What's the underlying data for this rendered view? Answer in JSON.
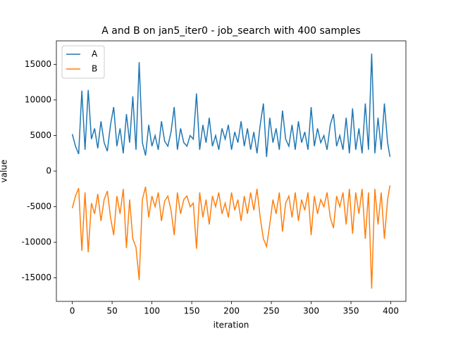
{
  "chart_data": {
    "type": "line",
    "title": "A and B on jan5_iter0 - job_search with 400 samples",
    "xlabel": "iteration",
    "ylabel": "value",
    "x": [
      0,
      4,
      8,
      12,
      16,
      20,
      24,
      28,
      32,
      36,
      40,
      44,
      48,
      52,
      56,
      60,
      64,
      68,
      72,
      76,
      80,
      84,
      88,
      92,
      96,
      100,
      104,
      108,
      112,
      116,
      120,
      124,
      128,
      132,
      136,
      140,
      144,
      148,
      152,
      156,
      160,
      164,
      168,
      172,
      176,
      180,
      184,
      188,
      192,
      196,
      200,
      204,
      208,
      212,
      216,
      220,
      224,
      228,
      232,
      236,
      240,
      244,
      248,
      252,
      256,
      260,
      264,
      268,
      272,
      276,
      280,
      284,
      288,
      292,
      296,
      300,
      304,
      308,
      312,
      316,
      320,
      324,
      328,
      332,
      336,
      340,
      344,
      348,
      352,
      356,
      360,
      364,
      368,
      372,
      376,
      380,
      384,
      388,
      392,
      396,
      399
    ],
    "series": [
      {
        "name": "A",
        "color": "#1f77b4",
        "values": [
          5200,
          3500,
          2400,
          11300,
          3000,
          11400,
          4500,
          6000,
          3200,
          7000,
          4000,
          2800,
          6500,
          9000,
          3500,
          6000,
          2500,
          8000,
          4000,
          10500,
          3000,
          15300,
          4000,
          2200,
          6500,
          3500,
          5000,
          3000,
          7000,
          4200,
          3500,
          5500,
          9000,
          3000,
          6000,
          4000,
          3500,
          5000,
          4500,
          10900,
          3000,
          6500,
          4000,
          7500,
          3500,
          5000,
          3000,
          6000,
          4500,
          6500,
          3000,
          5500,
          4000,
          7000,
          3500,
          6000,
          3000,
          5500,
          2500,
          6500,
          9500,
          2000,
          7500,
          4000,
          6000,
          3000,
          8500,
          4500,
          3500,
          6500,
          3000,
          7000,
          4000,
          5500,
          3000,
          9000,
          3500,
          6000,
          4000,
          5000,
          3000,
          6500,
          8000,
          3500,
          5000,
          3000,
          7500,
          2500,
          8800,
          3000,
          6000,
          2500,
          9500,
          3000,
          16500,
          2500,
          7500,
          3000,
          9500,
          4000,
          2000
        ]
      },
      {
        "name": "B",
        "color": "#ff7f0e",
        "values": [
          -5200,
          -3500,
          -2400,
          -11200,
          -3000,
          -11400,
          -4500,
          -6000,
          -3200,
          -7000,
          -4000,
          -2800,
          -6500,
          -9000,
          -3500,
          -6000,
          -2500,
          -10800,
          -4000,
          -9500,
          -10700,
          -15300,
          -4000,
          -2200,
          -6500,
          -3500,
          -5000,
          -3000,
          -7000,
          -4200,
          -3500,
          -5500,
          -9000,
          -3000,
          -6000,
          -4000,
          -3500,
          -5000,
          -4500,
          -10900,
          -3000,
          -6500,
          -4000,
          -7500,
          -3500,
          -5000,
          -3000,
          -6000,
          -4500,
          -6500,
          -3000,
          -5500,
          -4000,
          -7000,
          -3500,
          -6000,
          -3000,
          -5500,
          -2500,
          -6500,
          -9500,
          -10600,
          -7500,
          -4000,
          -6000,
          -3000,
          -8500,
          -4500,
          -3500,
          -6500,
          -3000,
          -7000,
          -4000,
          -5500,
          -3000,
          -9000,
          -3500,
          -6000,
          -4000,
          -5000,
          -3000,
          -6500,
          -8000,
          -3500,
          -5000,
          -3000,
          -7500,
          -2500,
          -8800,
          -3000,
          -6000,
          -2500,
          -9500,
          -3000,
          -16500,
          -2500,
          -7500,
          -3000,
          -9500,
          -4000,
          -2000
        ]
      }
    ],
    "xlim": [
      -20,
      419
    ],
    "ylim": [
      -18300,
      18300
    ],
    "xticks": [
      0,
      50,
      100,
      150,
      200,
      250,
      300,
      350,
      400
    ],
    "yticks": [
      -15000,
      -10000,
      -5000,
      0,
      5000,
      10000,
      15000
    ],
    "legend": "upper left"
  }
}
